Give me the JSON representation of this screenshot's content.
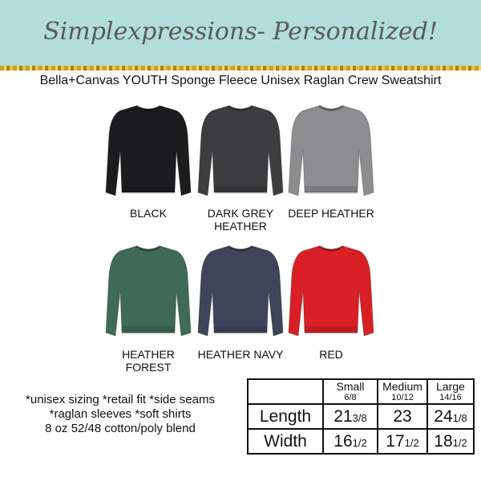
{
  "header": {
    "brand": "Simplexpressions- Personalized!",
    "subtitle": "Bella+Canvas YOUTH Sponge Fleece Unisex Raglan Crew Sweatshirt"
  },
  "colors": [
    {
      "name": "BLACK",
      "hex": "#1c1c1e"
    },
    {
      "name": "DARK GREY HEATHER",
      "hex": "#3d3d40"
    },
    {
      "name": "DEEP HEATHER",
      "hex": "#8d8d8f"
    },
    {
      "name": "HEATHER FOREST",
      "hex": "#3f6a55"
    },
    {
      "name": "HEATHER NAVY",
      "hex": "#3e4459"
    },
    {
      "name": "RED",
      "hex": "#d91f26"
    }
  ],
  "features": [
    "*unisex sizing *retail fit *side seams",
    "*raglan sleeves *soft shirts",
    "8 oz 52/48 cotton/poly blend"
  ],
  "size_chart": {
    "sizes": [
      {
        "name": "Small",
        "range": "6/8"
      },
      {
        "name": "Medium",
        "range": "10/12"
      },
      {
        "name": "Large",
        "range": "14/16"
      }
    ],
    "rows": [
      {
        "label": "Length",
        "values": [
          {
            "whole": "21",
            "frac": "3/8"
          },
          {
            "whole": "23",
            "frac": ""
          },
          {
            "whole": "24",
            "frac": "1/8"
          }
        ]
      },
      {
        "label": "Width",
        "values": [
          {
            "whole": "16",
            "frac": "1/2"
          },
          {
            "whole": "17",
            "frac": "1/2"
          },
          {
            "whole": "18",
            "frac": "1/2"
          }
        ]
      }
    ]
  }
}
